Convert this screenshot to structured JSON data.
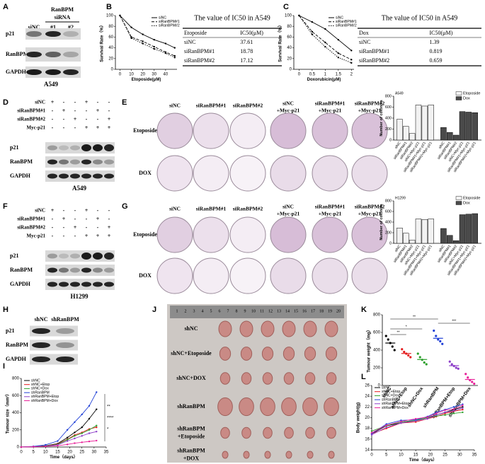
{
  "panel_letters": [
    "A",
    "B",
    "C",
    "D",
    "E",
    "F",
    "G",
    "H",
    "I",
    "J",
    "K",
    "L"
  ],
  "blots": [
    {
      "group": [
        "RanBPM",
        "siRNA"
      ],
      "columns": [
        "siNC",
        "#1",
        "#2"
      ],
      "rows": [
        "p21",
        "RanBPM",
        "GAPDH"
      ],
      "cell_line": "A549"
    },
    {
      "conditions": [
        {
          "name": "siNC",
          "signs": [
            "+",
            "-",
            "-",
            "+",
            "-",
            "-"
          ]
        },
        {
          "name": "siRanBPM#1",
          "signs": [
            "-",
            "+",
            "-",
            "-",
            "+",
            "-"
          ]
        },
        {
          "name": "siRanBPM#2",
          "signs": [
            "-",
            "-",
            "+",
            "-",
            "-",
            "+"
          ]
        },
        {
          "name": "Myc-p21",
          "signs": [
            "-",
            "-",
            "-",
            "+",
            "+",
            "+"
          ]
        }
      ],
      "rows": [
        "p21",
        "RanBPM",
        "GAPDH"
      ],
      "cell_line": "A549"
    },
    {
      "conditions": [
        {
          "name": "siNC",
          "signs": [
            "+",
            "-",
            "-",
            "+",
            "-",
            "-"
          ]
        },
        {
          "name": "siRanBPM#1",
          "signs": [
            "-",
            "+",
            "-",
            "-",
            "+",
            "-"
          ]
        },
        {
          "name": "siRanBPM#2",
          "signs": [
            "-",
            "-",
            "+",
            "-",
            "-",
            "+"
          ]
        },
        {
          "name": "Myc-p21",
          "signs": [
            "-",
            "-",
            "-",
            "+",
            "+",
            "+"
          ]
        }
      ],
      "rows": [
        "p21",
        "RanBPM",
        "GAPDH"
      ],
      "cell_line": "H1299"
    },
    {
      "columns": [
        "shNC",
        "shRanBPM"
      ],
      "rows": [
        "p21",
        "RanBPM",
        "GAPDH"
      ]
    }
  ],
  "tables": [
    {
      "title": "The value of IC50 in A549",
      "header": [
        "Etoposide",
        "IC50(μM)"
      ],
      "rows": [
        [
          "siNC",
          37.61
        ],
        [
          "siRanBPM#1",
          18.78
        ],
        [
          "siRanBPM#2",
          17.12
        ]
      ]
    },
    {
      "title": "The value of IC50 in A549",
      "header": [
        "Dox",
        "IC50(μM)"
      ],
      "rows": [
        [
          "siNC",
          1.39
        ],
        [
          "siRanBPM#1",
          0.819
        ],
        [
          "siRanBPM#2",
          0.659
        ]
      ]
    }
  ],
  "dishes": [
    {
      "columns": [
        [
          "siNC"
        ],
        [
          "siRanBPM#1"
        ],
        [
          "siRanBPM#2"
        ],
        [
          "siNC",
          "+Myc-p21"
        ],
        [
          "siRanBPM#1",
          "+Myc-p21"
        ],
        [
          "siRanBPM#2",
          "+Myc-p21"
        ]
      ],
      "rows": [
        "Etoposide",
        "DOX"
      ]
    },
    {
      "columns": [
        [
          "siNC"
        ],
        [
          "siRanBPM#1"
        ],
        [
          "siRanBPM#2"
        ],
        [
          "siNC",
          "+Myc-p21"
        ],
        [
          "siRanBPM#1",
          "+Myc-p21"
        ],
        [
          "siRanBPM#2",
          "+Myc-p21"
        ]
      ],
      "rows": [
        "Etoposide",
        "DOX"
      ]
    }
  ],
  "photo": {
    "ruler": [
      1,
      2,
      3,
      4,
      5,
      6,
      7,
      8,
      9,
      10,
      11,
      12,
      13,
      14,
      15,
      16,
      17,
      18,
      19,
      20
    ],
    "rows": [
      [
        "shNC"
      ],
      [
        "shNC+Etoposide"
      ],
      [
        "shNC+DOX"
      ],
      [
        "shRanBPM"
      ],
      [
        "shRanBPM",
        "+Etoposide"
      ],
      [
        "shRanBPM",
        "+DOX"
      ]
    ]
  },
  "chart_data": [
    {
      "type": "line",
      "xlabel": "Etoposide(μM)",
      "ylabel": "Survival Rate（%）",
      "x": [
        0,
        10,
        20,
        30,
        40,
        48
      ],
      "xlim": [
        -4,
        50
      ],
      "xticks": [
        0,
        10,
        20,
        30,
        40
      ],
      "ylim": [
        0,
        100
      ],
      "yticks": [
        0,
        20,
        40,
        60,
        80,
        100
      ],
      "legend": "upper right",
      "series": [
        {
          "name": "siNC",
          "color": "#000000",
          "dash": "solid",
          "values": [
            100,
            78,
            65,
            55,
            48,
            40
          ]
        },
        {
          "name": "siRanBPM#1",
          "color": "#000000",
          "dash": "dashed",
          "values": [
            100,
            60,
            52,
            42,
            32,
            25
          ]
        },
        {
          "name": "siRanBPM#2",
          "color": "#000000",
          "dash": "dotted",
          "values": [
            100,
            58,
            48,
            38,
            30,
            22
          ]
        }
      ]
    },
    {
      "type": "line",
      "xlabel": "Doxorubicin(μM)",
      "ylabel": "Survival Rate（%）",
      "x": [
        0,
        0.5,
        1,
        1.5,
        2
      ],
      "xlim": [
        -0.2,
        2.1
      ],
      "xticks": [
        0,
        0.5,
        1,
        1.5,
        2
      ],
      "ylim": [
        0,
        100
      ],
      "yticks": [
        0,
        20,
        40,
        60,
        80,
        100
      ],
      "legend": "upper right",
      "series": [
        {
          "name": "siNC",
          "color": "#000000",
          "dash": "solid",
          "values": [
            100,
            88,
            75,
            55,
            35
          ]
        },
        {
          "name": "siRanBPM#1",
          "color": "#000000",
          "dash": "dashed",
          "values": [
            100,
            70,
            50,
            30,
            18
          ]
        },
        {
          "name": "siRanBPM#2",
          "color": "#000000",
          "dash": "dotted",
          "values": [
            100,
            65,
            42,
            22,
            12
          ]
        }
      ]
    },
    {
      "type": "bar",
      "subtitle": "A549",
      "ylabel": "Number of colonies",
      "categories": [
        "siNC",
        "siRanBPM#1",
        "siRanBPM#2",
        "siNC+Myc-p21",
        "siRanBPM#1+Myc-p21",
        "siRanBPM#2+Myc-p21"
      ],
      "ylim": [
        0,
        800
      ],
      "yticks": [
        0,
        200,
        400,
        600,
        800
      ],
      "legend": "upper right",
      "series": [
        {
          "name": "Etoposide",
          "color": "#f2f2f2",
          "values": [
            380,
            250,
            120,
            640,
            620,
            640
          ]
        },
        {
          "name": "Dox",
          "color": "#4a4a4a",
          "values": [
            230,
            140,
            90,
            520,
            510,
            500
          ]
        }
      ]
    },
    {
      "type": "bar",
      "subtitle": "H1299",
      "ylabel": "Number of colonies",
      "categories": [
        "siNC",
        "siRanBPM#1",
        "siRanBPM#2",
        "siNC+Myc-p21",
        "siRanBPM#1+Myc-p21",
        "siRanBPM#2+Myc-p21"
      ],
      "ylim": [
        0,
        800
      ],
      "yticks": [
        0,
        200,
        400,
        600,
        800
      ],
      "legend": "upper right",
      "series": [
        {
          "name": "Etoposide",
          "color": "#f2f2f2",
          "values": [
            290,
            190,
            60,
            460,
            450,
            460
          ]
        },
        {
          "name": "Dox",
          "color": "#4a4a4a",
          "values": [
            280,
            150,
            50,
            540,
            550,
            560
          ]
        }
      ]
    },
    {
      "type": "line",
      "xlabel": "Time（days）",
      "ylabel": "Tumour size（mm³）",
      "x": [
        0,
        5,
        10,
        15,
        19,
        22,
        25,
        28,
        31
      ],
      "xlim": [
        0,
        35
      ],
      "xticks": [
        0,
        5,
        10,
        15,
        20,
        25,
        30,
        35
      ],
      "ylim": [
        0,
        800
      ],
      "yticks": [
        0,
        200,
        400,
        600,
        800
      ],
      "legend": "upper left",
      "annotations": [
        "**",
        "****",
        "*"
      ],
      "series": [
        {
          "name": "shNC",
          "color": "#000000",
          "dash": "solid",
          "values": [
            0,
            5,
            15,
            40,
            110,
            170,
            230,
            330,
            440
          ]
        },
        {
          "name": "shNC+Etop",
          "color": "#e41a1c",
          "dash": "solid",
          "values": [
            0,
            5,
            12,
            35,
            90,
            140,
            170,
            210,
            230
          ]
        },
        {
          "name": "shNC+Dox",
          "color": "#2ca02c",
          "dash": "solid",
          "values": [
            0,
            5,
            12,
            30,
            85,
            130,
            160,
            200,
            250
          ]
        },
        {
          "name": "shRanBPM",
          "color": "#1f3fd6",
          "dash": "solid",
          "values": [
            0,
            8,
            25,
            70,
            200,
            290,
            380,
            480,
            640
          ]
        },
        {
          "name": "shRanBPM+Etop",
          "color": "#8e3fc9",
          "dash": "solid",
          "values": [
            0,
            5,
            10,
            25,
            70,
            100,
            130,
            160,
            180
          ]
        },
        {
          "name": "shRanBPM+Dox",
          "color": "#e8229a",
          "dash": "solid",
          "values": [
            0,
            3,
            8,
            15,
            30,
            45,
            55,
            65,
            75
          ]
        }
      ]
    },
    {
      "type": "dot",
      "ylabel": "Tumour weight（mg）",
      "categories": [
        "shNC",
        "shNC+Etop",
        "shNC+Dox",
        "shRanBPM",
        "shRanBPM+Etop",
        "shRanBPM+Dox"
      ],
      "colors": [
        "#000000",
        "#e41a1c",
        "#2ca02c",
        "#1f3fd6",
        "#8e3fc9",
        "#e8229a"
      ],
      "ylim": [
        0,
        800
      ],
      "yticks": [
        0,
        200,
        400,
        600,
        800
      ],
      "values": [
        480,
        362,
        294,
        534,
        224,
        68
      ],
      "points": [
        [
          560,
          520,
          480,
          440,
          400
        ],
        [
          410,
          380,
          360,
          340,
          320
        ],
        [
          360,
          320,
          290,
          260,
          240
        ],
        [
          620,
          560,
          520,
          500,
          470
        ],
        [
          270,
          240,
          220,
          200,
          190
        ],
        [
          130,
          90,
          60,
          40,
          20
        ]
      ],
      "annotations": [
        "**",
        "*",
        "**",
        "***"
      ]
    },
    {
      "type": "line",
      "xlabel": "Time（days）",
      "ylabel": "Body weight(g)",
      "x": [
        0,
        5,
        10,
        15,
        19,
        22,
        25,
        28,
        31
      ],
      "xlim": [
        0,
        35
      ],
      "xticks": [
        0,
        5,
        10,
        15,
        20,
        25,
        30,
        35
      ],
      "ylim": [
        14,
        26
      ],
      "yticks": [
        14,
        16,
        18,
        20,
        22,
        24,
        26
      ],
      "legend": "upper left",
      "series": [
        {
          "name": "shNC",
          "color": "#000000",
          "dash": "solid",
          "values": [
            17,
            18.5,
            19,
            19.5,
            20,
            20.5,
            21,
            21.5,
            22
          ]
        },
        {
          "name": "shNC+Etop",
          "color": "#e41a1c",
          "dash": "solid",
          "values": [
            17,
            18,
            19,
            19.2,
            19.8,
            20.2,
            20.8,
            21.2,
            21.5
          ]
        },
        {
          "name": "shNC+Dox",
          "color": "#2ca02c",
          "dash": "solid",
          "values": [
            17.5,
            18.5,
            19.2,
            19.5,
            20,
            20.3,
            20.5,
            20.8,
            21
          ]
        },
        {
          "name": "shRanBPM",
          "color": "#1f3fd6",
          "dash": "solid",
          "values": [
            17,
            18.8,
            19.5,
            19.6,
            20.2,
            21,
            21.5,
            22,
            22.5
          ]
        },
        {
          "name": "shRanBPM+Etop",
          "color": "#8e3fc9",
          "dash": "solid",
          "values": [
            16.8,
            18.2,
            19,
            19.4,
            19.8,
            20.5,
            21,
            21.3,
            21.8
          ]
        },
        {
          "name": "shRanBPM+Dox",
          "color": "#e8229a",
          "dash": "solid",
          "values": [
            17.2,
            18.6,
            19.3,
            19.8,
            20.1,
            20.8,
            21.4,
            21.6,
            22.3
          ]
        }
      ]
    }
  ]
}
